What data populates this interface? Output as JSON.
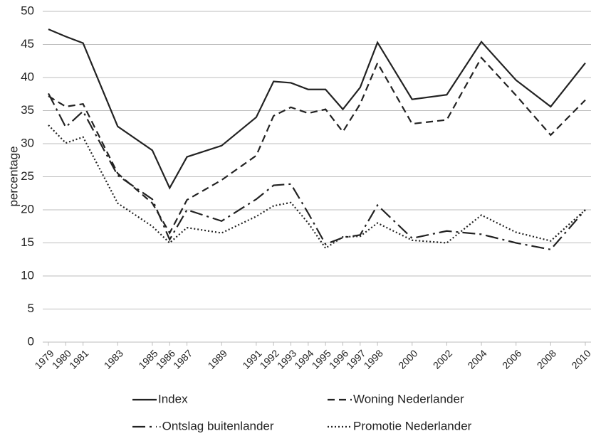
{
  "chart_data": {
    "type": "line",
    "y_label": "percentage",
    "x": [
      1979,
      1980,
      1981,
      1983,
      1985,
      1986,
      1987,
      1989,
      1991,
      1992,
      1993,
      1994,
      1995,
      1996,
      1997,
      1998,
      2000,
      2002,
      2004,
      2006,
      2008,
      2010
    ],
    "xlim": [
      1979,
      2010
    ],
    "xticks": [
      1979,
      1980,
      1981,
      1983,
      1985,
      1986,
      1987,
      1989,
      1991,
      1992,
      1993,
      1994,
      1995,
      1996,
      1997,
      1998,
      2000,
      2002,
      2004,
      2006,
      2008,
      2010
    ],
    "ylim": [
      0,
      50
    ],
    "yticks": [
      0,
      5,
      10,
      15,
      20,
      25,
      30,
      35,
      40,
      45,
      50
    ],
    "grid": true,
    "series": [
      {
        "name": "Index",
        "color": "#222222",
        "dash": "none",
        "values": [
          47.3,
          46.2,
          45.2,
          32.6,
          29,
          23.3,
          28,
          29.7,
          34,
          39.4,
          39.2,
          38.2,
          38.2,
          35.2,
          38.5,
          45.3,
          36.7,
          37.4,
          45.4,
          39.6,
          35.6,
          42.2
        ]
      },
      {
        "name": "Woning Nederlander",
        "color": "#222222",
        "dash": "10,6",
        "values": [
          37.2,
          35.6,
          36,
          25.5,
          21,
          16.5,
          21.5,
          24.5,
          28.2,
          34.2,
          35.5,
          34.6,
          35.2,
          31.8,
          36,
          42.2,
          33,
          33.6,
          43,
          37.3,
          31.3,
          36.6
        ]
      },
      {
        "name": "·Ontslag buitenlander",
        "color": "#222222",
        "dash": "18,6,3,6",
        "values": [
          37.6,
          32.5,
          34.9,
          25.2,
          21.6,
          15.5,
          20,
          18.3,
          21.6,
          23.7,
          23.9,
          19.5,
          14.8,
          15.8,
          16.2,
          20.7,
          15.7,
          16.8,
          16.3,
          15,
          14,
          20
        ]
      },
      {
        "name": "Promotie Nederlander",
        "color": "#222222",
        "dash": "2,3",
        "values": [
          32.8,
          30.1,
          31,
          21,
          17.5,
          15,
          17.3,
          16.5,
          19,
          20.6,
          21.1,
          18,
          14.2,
          15.9,
          16,
          18,
          15.4,
          15,
          19.2,
          16.6,
          15.3,
          20
        ]
      }
    ]
  }
}
